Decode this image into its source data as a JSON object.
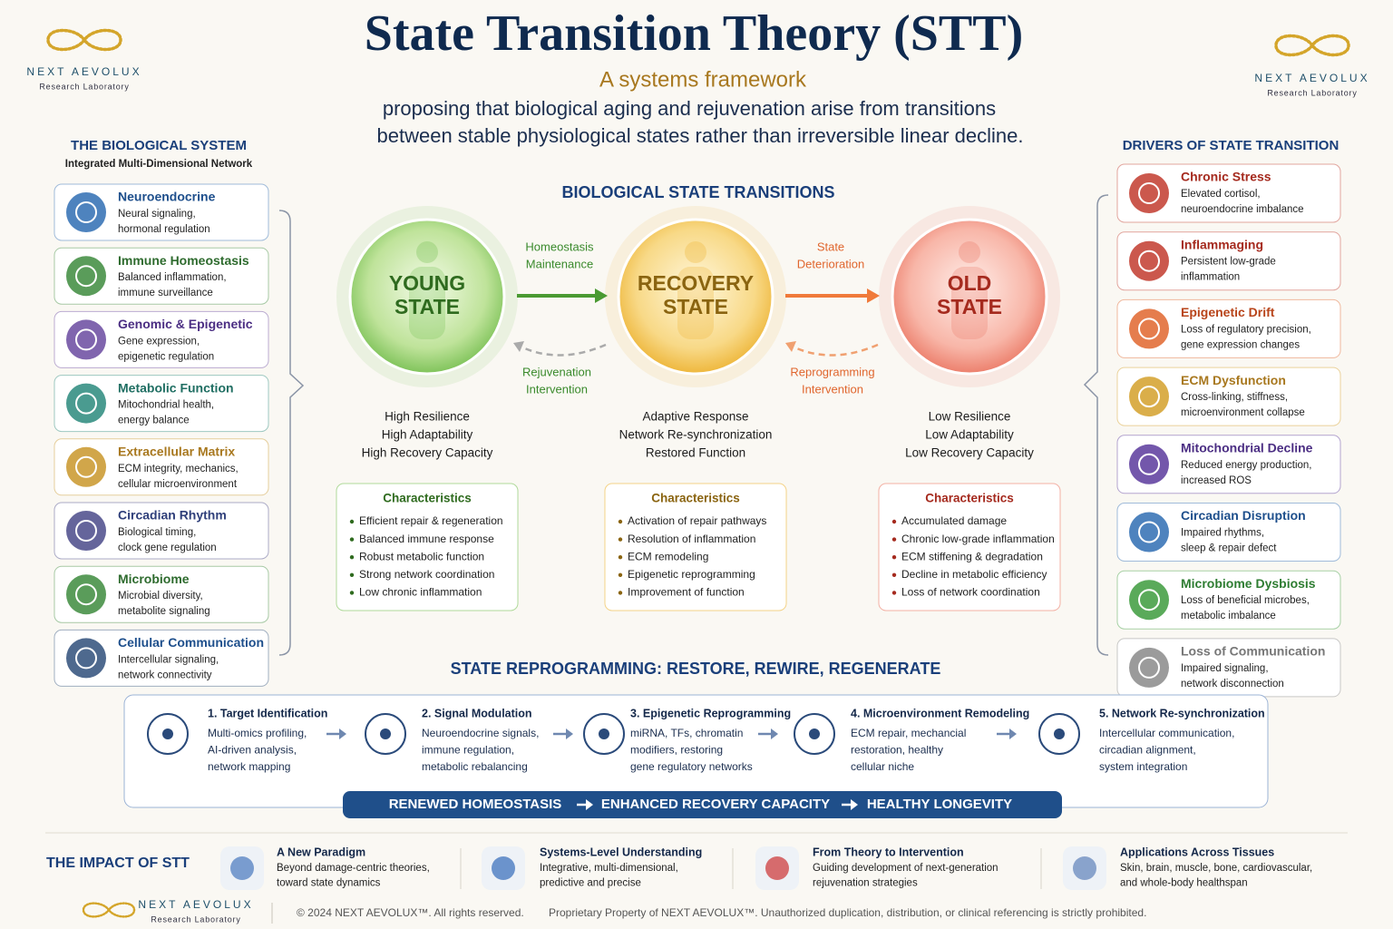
{
  "header": {
    "title": "State Transition Theory (STT)",
    "subtitle": "A systems framework",
    "description": [
      "proposing that biological aging and rejuvenation arise from transitions",
      "between stable physiological states rather than irreversible linear decline."
    ]
  },
  "logos": [
    {
      "brand": "NEXT AEVOLUX",
      "tagline": "Research Laboratory"
    },
    {
      "brand": "NEXT AEVOLUX",
      "tagline": "Research Laboratory"
    },
    {
      "brand": "NEXT AEVOLUX",
      "tagline": "Research Laboratory"
    }
  ],
  "left_panel": {
    "title": "THE BIOLOGICAL SYSTEM",
    "subtitle": "Integrated Multi-Dimensional Network",
    "items": [
      {
        "title": "Neuroendocrine",
        "lines": [
          "Neural signaling,",
          "hormonal regulation"
        ]
      },
      {
        "title": "Immune Homeostasis",
        "lines": [
          "Balanced inflammation,",
          "immune surveillance"
        ]
      },
      {
        "title": "Genomic & Epigenetic",
        "lines": [
          "Gene expression,",
          "epigenetic regulation"
        ]
      },
      {
        "title": "Metabolic Function",
        "lines": [
          "Mitochondrial health,",
          "energy balance"
        ]
      },
      {
        "title": "Extracellular Matrix",
        "lines": [
          "ECM integrity, mechanics,",
          "cellular microenvironment"
        ]
      },
      {
        "title": "Circadian Rhythm",
        "lines": [
          "Biological timing,",
          "clock gene regulation"
        ]
      },
      {
        "title": "Microbiome",
        "lines": [
          "Microbial diversity,",
          "metabolite signaling"
        ]
      },
      {
        "title": "Cellular Communication",
        "lines": [
          "Intercellular signaling,",
          "network connectivity"
        ]
      }
    ]
  },
  "right_panel": {
    "title": "DRIVERS OF STATE TRANSITION",
    "items": [
      {
        "title": "Chronic Stress",
        "lines": [
          "Elevated cortisol,",
          "neuroendocrine imbalance"
        ]
      },
      {
        "title": "Inflammaging",
        "lines": [
          "Persistent low-grade",
          "inflammation"
        ]
      },
      {
        "title": "Epigenetic Drift",
        "lines": [
          "Loss of regulatory precision,",
          "gene expression changes"
        ]
      },
      {
        "title": "ECM Dysfunction",
        "lines": [
          "Cross-linking, stiffness,",
          "microenvironment collapse"
        ]
      },
      {
        "title": "Mitochondrial Decline",
        "lines": [
          "Reduced energy production,",
          "increased ROS"
        ]
      },
      {
        "title": "Circadian Disruption",
        "lines": [
          "Impaired rhythms,",
          "sleep & repair defect"
        ]
      },
      {
        "title": "Microbiome Dysbiosis",
        "lines": [
          "Loss of beneficial microbes,",
          "metabolic imbalance"
        ]
      },
      {
        "title": "Loss of Communication",
        "lines": [
          "Impaired signaling,",
          "network disconnection"
        ]
      }
    ]
  },
  "center": {
    "title": "BIOLOGICAL STATE TRANSITIONS",
    "states": [
      {
        "name": [
          "YOUNG",
          "STATE"
        ],
        "traits": [
          "High Resilience",
          "High Adaptability",
          "High Recovery Capacity"
        ],
        "characteristics_title": "Characteristics",
        "characteristics": [
          "Efficient repair & regeneration",
          "Balanced immune response",
          "Robust metabolic function",
          "Strong network coordination",
          "Low chronic inflammation"
        ]
      },
      {
        "name": [
          "RECOVERY",
          "STATE"
        ],
        "traits": [
          "Adaptive Response",
          "Network Re-synchronization",
          "Restored Function"
        ],
        "characteristics_title": "Characteristics",
        "characteristics": [
          "Activation of repair pathways",
          "Resolution of inflammation",
          "ECM remodeling",
          "Epigenetic reprogramming",
          "Improvement of function"
        ]
      },
      {
        "name": [
          "OLD",
          "STATE"
        ],
        "traits": [
          "Low Resilience",
          "Low Adaptability",
          "Low Recovery Capacity"
        ],
        "characteristics_title": "Characteristics",
        "characteristics": [
          "Accumulated damage",
          "Chronic low-grade inflammation",
          "ECM stiffening & degradation",
          "Decline in metabolic efficiency",
          "Loss of network coordination"
        ]
      }
    ],
    "forward": [
      [
        "Homeostasis",
        "Maintenance"
      ],
      [
        "State",
        "Deterioration"
      ]
    ],
    "backward": [
      [
        "Rejuvenation",
        "Intervention"
      ],
      [
        "Reprogramming",
        "Intervention"
      ]
    ]
  },
  "reprogramming": {
    "title": "STATE REPROGRAMMING: RESTORE, REWIRE, REGENERATE",
    "steps": [
      {
        "title": "1. Target Identification",
        "lines": [
          "Multi-omics profiling,",
          "AI-driven analysis,",
          "network mapping"
        ]
      },
      {
        "title": "2. Signal Modulation",
        "lines": [
          "Neuroendocrine signals,",
          "immune regulation,",
          "metabolic rebalancing"
        ]
      },
      {
        "title": "3. Epigenetic Reprogramming",
        "lines": [
          "miRNA, TFs, chromatin",
          "modifiers, restoring",
          "gene regulatory networks"
        ]
      },
      {
        "title": "4. Microenvironment Remodeling",
        "lines": [
          "ECM repair, mechancial",
          "restoration, healthy",
          "cellular niche"
        ]
      },
      {
        "title": "5. Network Re-synchronization",
        "lines": [
          "Intercellular communication,",
          "circadian alignment,",
          "system integration"
        ]
      }
    ],
    "banner": [
      "RENEWED HOMEOSTASIS",
      "ENHANCED RECOVERY CAPACITY",
      "HEALTHY LONGEVITY"
    ]
  },
  "impact": {
    "title": "THE IMPACT OF STT",
    "items": [
      {
        "title": "A New Paradigm",
        "lines": [
          "Beyond damage-centric theories,",
          "toward state dynamics"
        ]
      },
      {
        "title": "Systems-Level Understanding",
        "lines": [
          "Integrative, multi-dimensional,",
          "predictive and precise"
        ]
      },
      {
        "title": "From Theory to Intervention",
        "lines": [
          "Guiding development of next-generation",
          "rejuvenation strategies"
        ]
      },
      {
        "title": "Applications Across Tissues",
        "lines": [
          "Skin, brain, muscle, bone, cardiovascular,",
          "and whole-body healthspan"
        ]
      }
    ]
  },
  "footer": {
    "copyright": "© 2024 NEXT AEVOLUX™. All rights reserved.",
    "notice": "Proprietary Property of NEXT AEVOLUX™. Unauthorized duplication, distribution, or clinical referencing is strictly prohibited."
  }
}
